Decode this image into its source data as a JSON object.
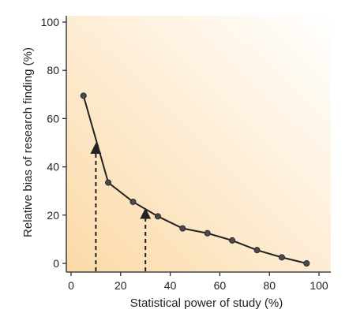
{
  "chart_data": {
    "type": "line",
    "title": "",
    "xlabel": "Statistical power of study (%)",
    "ylabel": "Relative bias of research finding (%)",
    "xlim": [
      0,
      100
    ],
    "ylim": [
      0,
      100
    ],
    "x_ticks": [
      0,
      20,
      40,
      60,
      80,
      100
    ],
    "y_ticks": [
      0,
      20,
      40,
      60,
      80,
      100
    ],
    "grid": false,
    "background": "gradient: light orange at left-bottom fading to white at right",
    "series": [
      {
        "x": [
          5,
          15,
          25,
          35,
          45,
          55,
          65,
          75,
          85,
          95
        ],
        "y": [
          69.5,
          33.5,
          25.5,
          19.5,
          14.5,
          12.5,
          9.5,
          5.5,
          2.5,
          0
        ]
      }
    ],
    "annotations": [
      {
        "type": "dashed-arrow",
        "x": 10,
        "y_from": 0,
        "y_to": 49
      },
      {
        "type": "dashed-arrow",
        "x": 30,
        "y_from": 0,
        "y_to": 22
      }
    ]
  },
  "colors": {
    "line": "#222222",
    "marker": "#4a4a4a",
    "axis": "#222222",
    "gradient_warm": "#fbd9a6",
    "gradient_mid": "#fdebd0",
    "gradient_white": "#ffffff"
  }
}
